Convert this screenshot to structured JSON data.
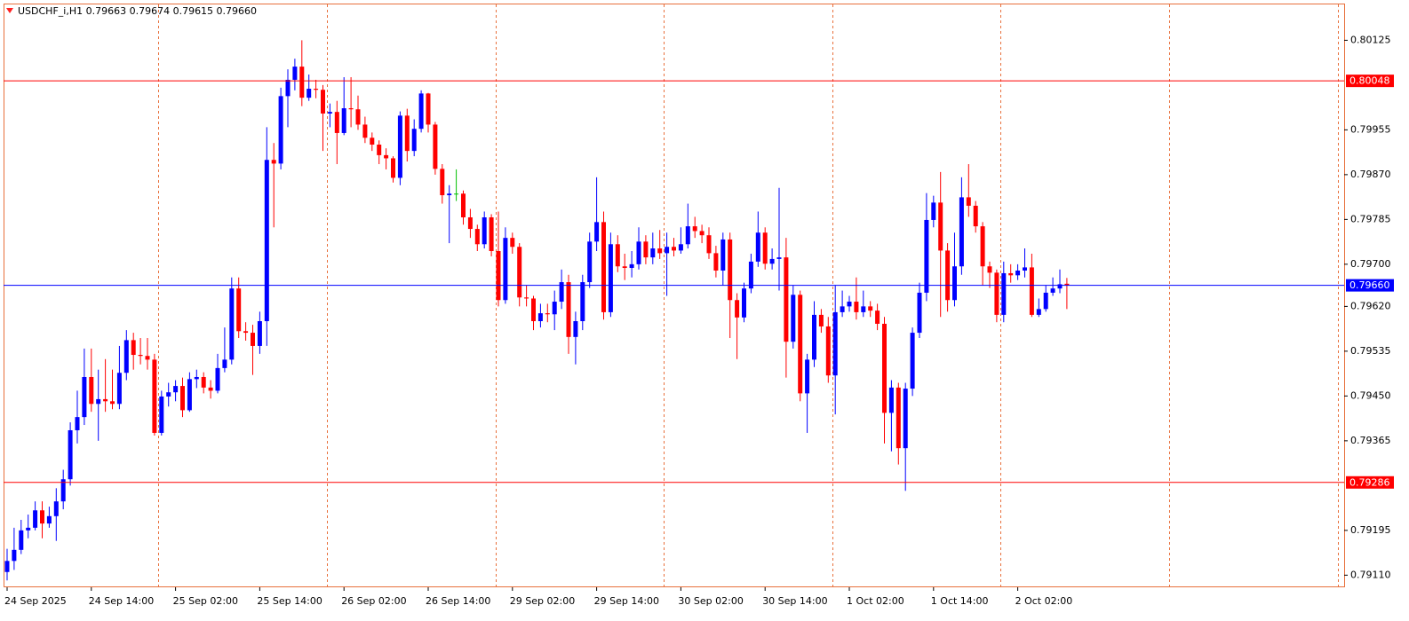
{
  "chart_data": {
    "type": "candlestick",
    "title": "USDCHF_i,H1  0.79663 0.79674 0.79615 0.79660",
    "categories": [
      "24 Sep 2025",
      null,
      null,
      null,
      null,
      null,
      null,
      null,
      null,
      null,
      null,
      null,
      "24 Sep 14:00",
      null,
      null,
      null,
      null,
      null,
      null,
      null,
      null,
      null,
      null,
      null,
      "25 Sep 02:00",
      null,
      null,
      null,
      null,
      null,
      null,
      null,
      null,
      null,
      null,
      null,
      "25 Sep 14:00",
      null,
      null,
      null,
      null,
      null,
      null,
      null,
      null,
      null,
      null,
      null,
      "26 Sep 02:00",
      null,
      null,
      null,
      null,
      null,
      null,
      null,
      null,
      null,
      null,
      null,
      "26 Sep 14:00",
      null,
      null,
      null,
      null,
      null,
      null,
      null,
      null,
      null,
      null,
      null,
      "29 Sep 02:00",
      null,
      null,
      null,
      null,
      null,
      null,
      null,
      null,
      null,
      null,
      null,
      "29 Sep 14:00",
      null,
      null,
      null,
      null,
      null,
      null,
      null,
      null,
      null,
      null,
      null,
      "30 Sep 02:00",
      null,
      null,
      null,
      null,
      null,
      null,
      null,
      null,
      null,
      null,
      null,
      "30 Sep 14:00",
      null,
      null,
      null,
      null,
      null,
      null,
      null,
      null,
      null,
      null,
      null,
      "1 Oct 02:00",
      null,
      null,
      null,
      null,
      null,
      null,
      null,
      null,
      null,
      null,
      null,
      "1 Oct 14:00",
      null,
      null,
      null,
      null,
      null,
      null,
      null,
      null,
      null,
      null,
      null,
      "2 Oct 02:00",
      null,
      null,
      null,
      null,
      null,
      null,
      null
    ],
    "open": [
      0.79116,
      0.79137,
      0.79158,
      0.79195,
      0.792,
      0.79233,
      0.79208,
      0.79222,
      0.7925,
      0.79292,
      0.79385,
      0.7941,
      0.79486,
      0.79435,
      0.79444,
      0.7944,
      0.79435,
      0.79494,
      0.79556,
      0.79528,
      0.79526,
      0.79519,
      0.7938,
      0.79449,
      0.79457,
      0.79469,
      0.79423,
      0.79482,
      0.79486,
      0.79466,
      0.7946,
      0.79503,
      0.79519,
      0.79654,
      0.79573,
      0.7957,
      0.79545,
      0.79592,
      0.79898,
      0.79891,
      0.80019,
      0.8005,
      0.80075,
      0.80016,
      0.80033,
      0.80031,
      0.79986,
      0.79989,
      0.79949,
      0.79996,
      0.79994,
      0.79965,
      0.7994,
      0.79927,
      0.79907,
      0.79901,
      0.79864,
      0.79982,
      0.79915,
      0.79957,
      0.80024,
      0.79965,
      0.79881,
      0.79831,
      0.79834,
      0.79834,
      0.79789,
      0.79767,
      0.79738,
      0.79789,
      0.79725,
      0.79632,
      0.7975,
      0.79733,
      0.79637,
      0.79635,
      0.79592,
      0.79607,
      0.79605,
      0.79629,
      0.79666,
      0.79562,
      0.79592,
      0.79666,
      0.79743,
      0.7978,
      0.79609,
      0.79738,
      0.79696,
      0.79693,
      0.797,
      0.79743,
      0.79713,
      0.7973,
      0.79721,
      0.79733,
      0.79726,
      0.79738,
      0.79772,
      0.79763,
      0.79755,
      0.79721,
      0.79688,
      0.79747,
      0.79632,
      0.79599,
      0.79654,
      0.79705,
      0.7976,
      0.79701,
      0.7971,
      0.79713,
      0.79553,
      0.79642,
      0.79455,
      0.79519,
      0.79604,
      0.79582,
      0.79489,
      0.79609,
      0.7962,
      0.79629,
      0.79609,
      0.7962,
      0.79612,
      0.79587,
      0.79418,
      0.79466,
      0.79351,
      0.79464,
      0.7957,
      0.79646,
      0.79784,
      0.79817,
      0.79726,
      0.79632,
      0.79696,
      0.79827,
      0.79811,
      0.79772,
      0.79696,
      0.79684,
      0.79604,
      0.79683,
      0.79679,
      0.79688,
      0.79694,
      0.79604,
      0.79615,
      0.79646,
      0.79654,
      0.79663
    ],
    "high": [
      0.7916,
      0.792,
      0.79215,
      0.79225,
      0.7925,
      0.7925,
      0.7924,
      0.79275,
      0.7931,
      0.794,
      0.7946,
      0.7954,
      0.7954,
      0.795,
      0.7952,
      0.795,
      0.79545,
      0.79575,
      0.7957,
      0.7956,
      0.7956,
      0.7953,
      0.7946,
      0.79475,
      0.7948,
      0.79485,
      0.79495,
      0.795,
      0.79495,
      0.7948,
      0.7953,
      0.7958,
      0.79675,
      0.79675,
      0.7959,
      0.79585,
      0.7961,
      0.7996,
      0.7993,
      0.80035,
      0.8007,
      0.8009,
      0.80125,
      0.8006,
      0.8005,
      0.8004,
      0.80005,
      0.8001,
      0.80055,
      0.80055,
      0.8002,
      0.7998,
      0.7995,
      0.79935,
      0.7992,
      0.79905,
      0.7999,
      0.79995,
      0.79975,
      0.8003,
      0.80025,
      0.7997,
      0.7989,
      0.7985,
      0.7988,
      0.7984,
      0.79805,
      0.79775,
      0.798,
      0.79795,
      0.798,
      0.7977,
      0.7976,
      0.7974,
      0.7966,
      0.7964,
      0.79625,
      0.79625,
      0.7965,
      0.7969,
      0.7968,
      0.7961,
      0.7968,
      0.7976,
      0.79865,
      0.798,
      0.7976,
      0.79755,
      0.7972,
      0.79725,
      0.7977,
      0.79755,
      0.7976,
      0.79765,
      0.7976,
      0.7975,
      0.7977,
      0.79815,
      0.7979,
      0.79775,
      0.7977,
      0.79735,
      0.7976,
      0.7976,
      0.79645,
      0.79665,
      0.7972,
      0.798,
      0.7977,
      0.7973,
      0.79845,
      0.7975,
      0.7966,
      0.7965,
      0.7953,
      0.7963,
      0.79615,
      0.796,
      0.7966,
      0.7965,
      0.7964,
      0.79675,
      0.7965,
      0.7963,
      0.79625,
      0.796,
      0.7948,
      0.79475,
      0.79475,
      0.7958,
      0.79665,
      0.79835,
      0.7983,
      0.79875,
      0.7974,
      0.7976,
      0.79865,
      0.7989,
      0.7982,
      0.7978,
      0.79705,
      0.7969,
      0.79705,
      0.797,
      0.797,
      0.7973,
      0.7972,
      0.79635,
      0.7966,
      0.79675,
      0.7969,
      0.79674
    ],
    "low": [
      0.791,
      0.7912,
      0.7915,
      0.7918,
      0.79195,
      0.7918,
      0.792,
      0.79175,
      0.79235,
      0.7928,
      0.7936,
      0.79395,
      0.7942,
      0.79365,
      0.7942,
      0.79425,
      0.79425,
      0.7948,
      0.795,
      0.7951,
      0.795,
      0.79375,
      0.79375,
      0.7943,
      0.7944,
      0.7941,
      0.7942,
      0.79465,
      0.79455,
      0.79445,
      0.79455,
      0.79495,
      0.7951,
      0.7956,
      0.79555,
      0.7949,
      0.7953,
      0.79545,
      0.7977,
      0.7988,
      0.7996,
      0.8003,
      0.8,
      0.8001,
      0.80015,
      0.79915,
      0.7996,
      0.7989,
      0.79945,
      0.7996,
      0.79955,
      0.7993,
      0.79915,
      0.7989,
      0.7988,
      0.79855,
      0.7985,
      0.79895,
      0.79905,
      0.7995,
      0.7995,
      0.7987,
      0.79815,
      0.7974,
      0.7982,
      0.79775,
      0.7975,
      0.79725,
      0.7973,
      0.79715,
      0.7962,
      0.79625,
      0.7972,
      0.7962,
      0.7962,
      0.79575,
      0.7958,
      0.7959,
      0.79575,
      0.79615,
      0.7953,
      0.7951,
      0.79575,
      0.79655,
      0.79725,
      0.79595,
      0.796,
      0.79685,
      0.7967,
      0.79675,
      0.7969,
      0.797,
      0.797,
      0.7971,
      0.7964,
      0.79715,
      0.7972,
      0.7973,
      0.7975,
      0.7974,
      0.7971,
      0.79675,
      0.7966,
      0.7956,
      0.7952,
      0.7959,
      0.79645,
      0.79695,
      0.7969,
      0.7969,
      0.7965,
      0.79485,
      0.7954,
      0.7944,
      0.7938,
      0.79505,
      0.7957,
      0.79475,
      0.79415,
      0.796,
      0.7961,
      0.79595,
      0.796,
      0.796,
      0.79575,
      0.7936,
      0.79345,
      0.7932,
      0.7927,
      0.7945,
      0.7956,
      0.7963,
      0.7977,
      0.796,
      0.7961,
      0.7962,
      0.7968,
      0.7979,
      0.7976,
      0.7966,
      0.79655,
      0.7959,
      0.7959,
      0.79665,
      0.7967,
      0.79675,
      0.796,
      0.796,
      0.7961,
      0.7964,
      0.79645,
      0.79615
    ],
    "close": [
      0.79137,
      0.79158,
      0.79195,
      0.792,
      0.79233,
      0.79208,
      0.79222,
      0.7925,
      0.79292,
      0.79385,
      0.7941,
      0.79486,
      0.79435,
      0.79444,
      0.7944,
      0.79435,
      0.79494,
      0.79556,
      0.79528,
      0.79526,
      0.79519,
      0.7938,
      0.79449,
      0.79457,
      0.79469,
      0.79423,
      0.79482,
      0.79486,
      0.79466,
      0.7946,
      0.79503,
      0.79519,
      0.79654,
      0.79573,
      0.7957,
      0.79545,
      0.79592,
      0.79898,
      0.79891,
      0.80019,
      0.8005,
      0.80075,
      0.80016,
      0.80033,
      0.80031,
      0.79986,
      0.79989,
      0.79949,
      0.79996,
      0.79994,
      0.79965,
      0.7994,
      0.79927,
      0.79907,
      0.79901,
      0.79864,
      0.79982,
      0.79915,
      0.79957,
      0.80024,
      0.79965,
      0.79881,
      0.79831,
      0.79834,
      0.79834,
      0.79789,
      0.79767,
      0.79738,
      0.79789,
      0.79725,
      0.79632,
      0.7975,
      0.79733,
      0.79637,
      0.79635,
      0.79592,
      0.79607,
      0.79605,
      0.79629,
      0.79666,
      0.79562,
      0.79592,
      0.79666,
      0.79743,
      0.7978,
      0.79609,
      0.79738,
      0.79696,
      0.79693,
      0.797,
      0.79743,
      0.79713,
      0.7973,
      0.79721,
      0.79733,
      0.79726,
      0.79738,
      0.79772,
      0.79763,
      0.79755,
      0.79721,
      0.79688,
      0.79747,
      0.79632,
      0.79599,
      0.79654,
      0.79705,
      0.7976,
      0.79701,
      0.7971,
      0.79713,
      0.79553,
      0.79642,
      0.79455,
      0.79519,
      0.79604,
      0.79582,
      0.79489,
      0.79609,
      0.7962,
      0.79629,
      0.79609,
      0.7962,
      0.79612,
      0.79587,
      0.79418,
      0.79466,
      0.79351,
      0.79464,
      0.7957,
      0.79646,
      0.79784,
      0.79817,
      0.79726,
      0.79632,
      0.79696,
      0.79827,
      0.79811,
      0.79772,
      0.79696,
      0.79684,
      0.79604,
      0.79683,
      0.79679,
      0.79688,
      0.79694,
      0.79604,
      0.79615,
      0.79646,
      0.79654,
      0.79662,
      0.7966
    ],
    "bull_color": "#0000ff",
    "bear_color": "#ff0000",
    "doji_color": "#00c000",
    "ylim": [
      0.79087,
      0.80193
    ],
    "yticks": [
      0.80125,
      0.79955,
      {
        "value": 0.7987,
        "label": "0.79870"
      },
      0.79785,
      {
        "value": 0.797,
        "label": "0.79700"
      },
      {
        "value": 0.7962,
        "label": "0.79620"
      },
      0.79535,
      {
        "value": 0.7945,
        "label": "0.79450"
      },
      0.79365,
      0.79195,
      {
        "value": 0.7911,
        "label": "0.79110"
      }
    ],
    "levels": [
      {
        "value": 0.80048,
        "label": "0.80048",
        "color": "#ff0000"
      },
      {
        "value": 0.7966,
        "label": "0.79660",
        "color": "#0000ff"
      },
      {
        "value": 0.79286,
        "label": "0.79286",
        "color": "#ff0000"
      }
    ],
    "period_separators": true
  }
}
